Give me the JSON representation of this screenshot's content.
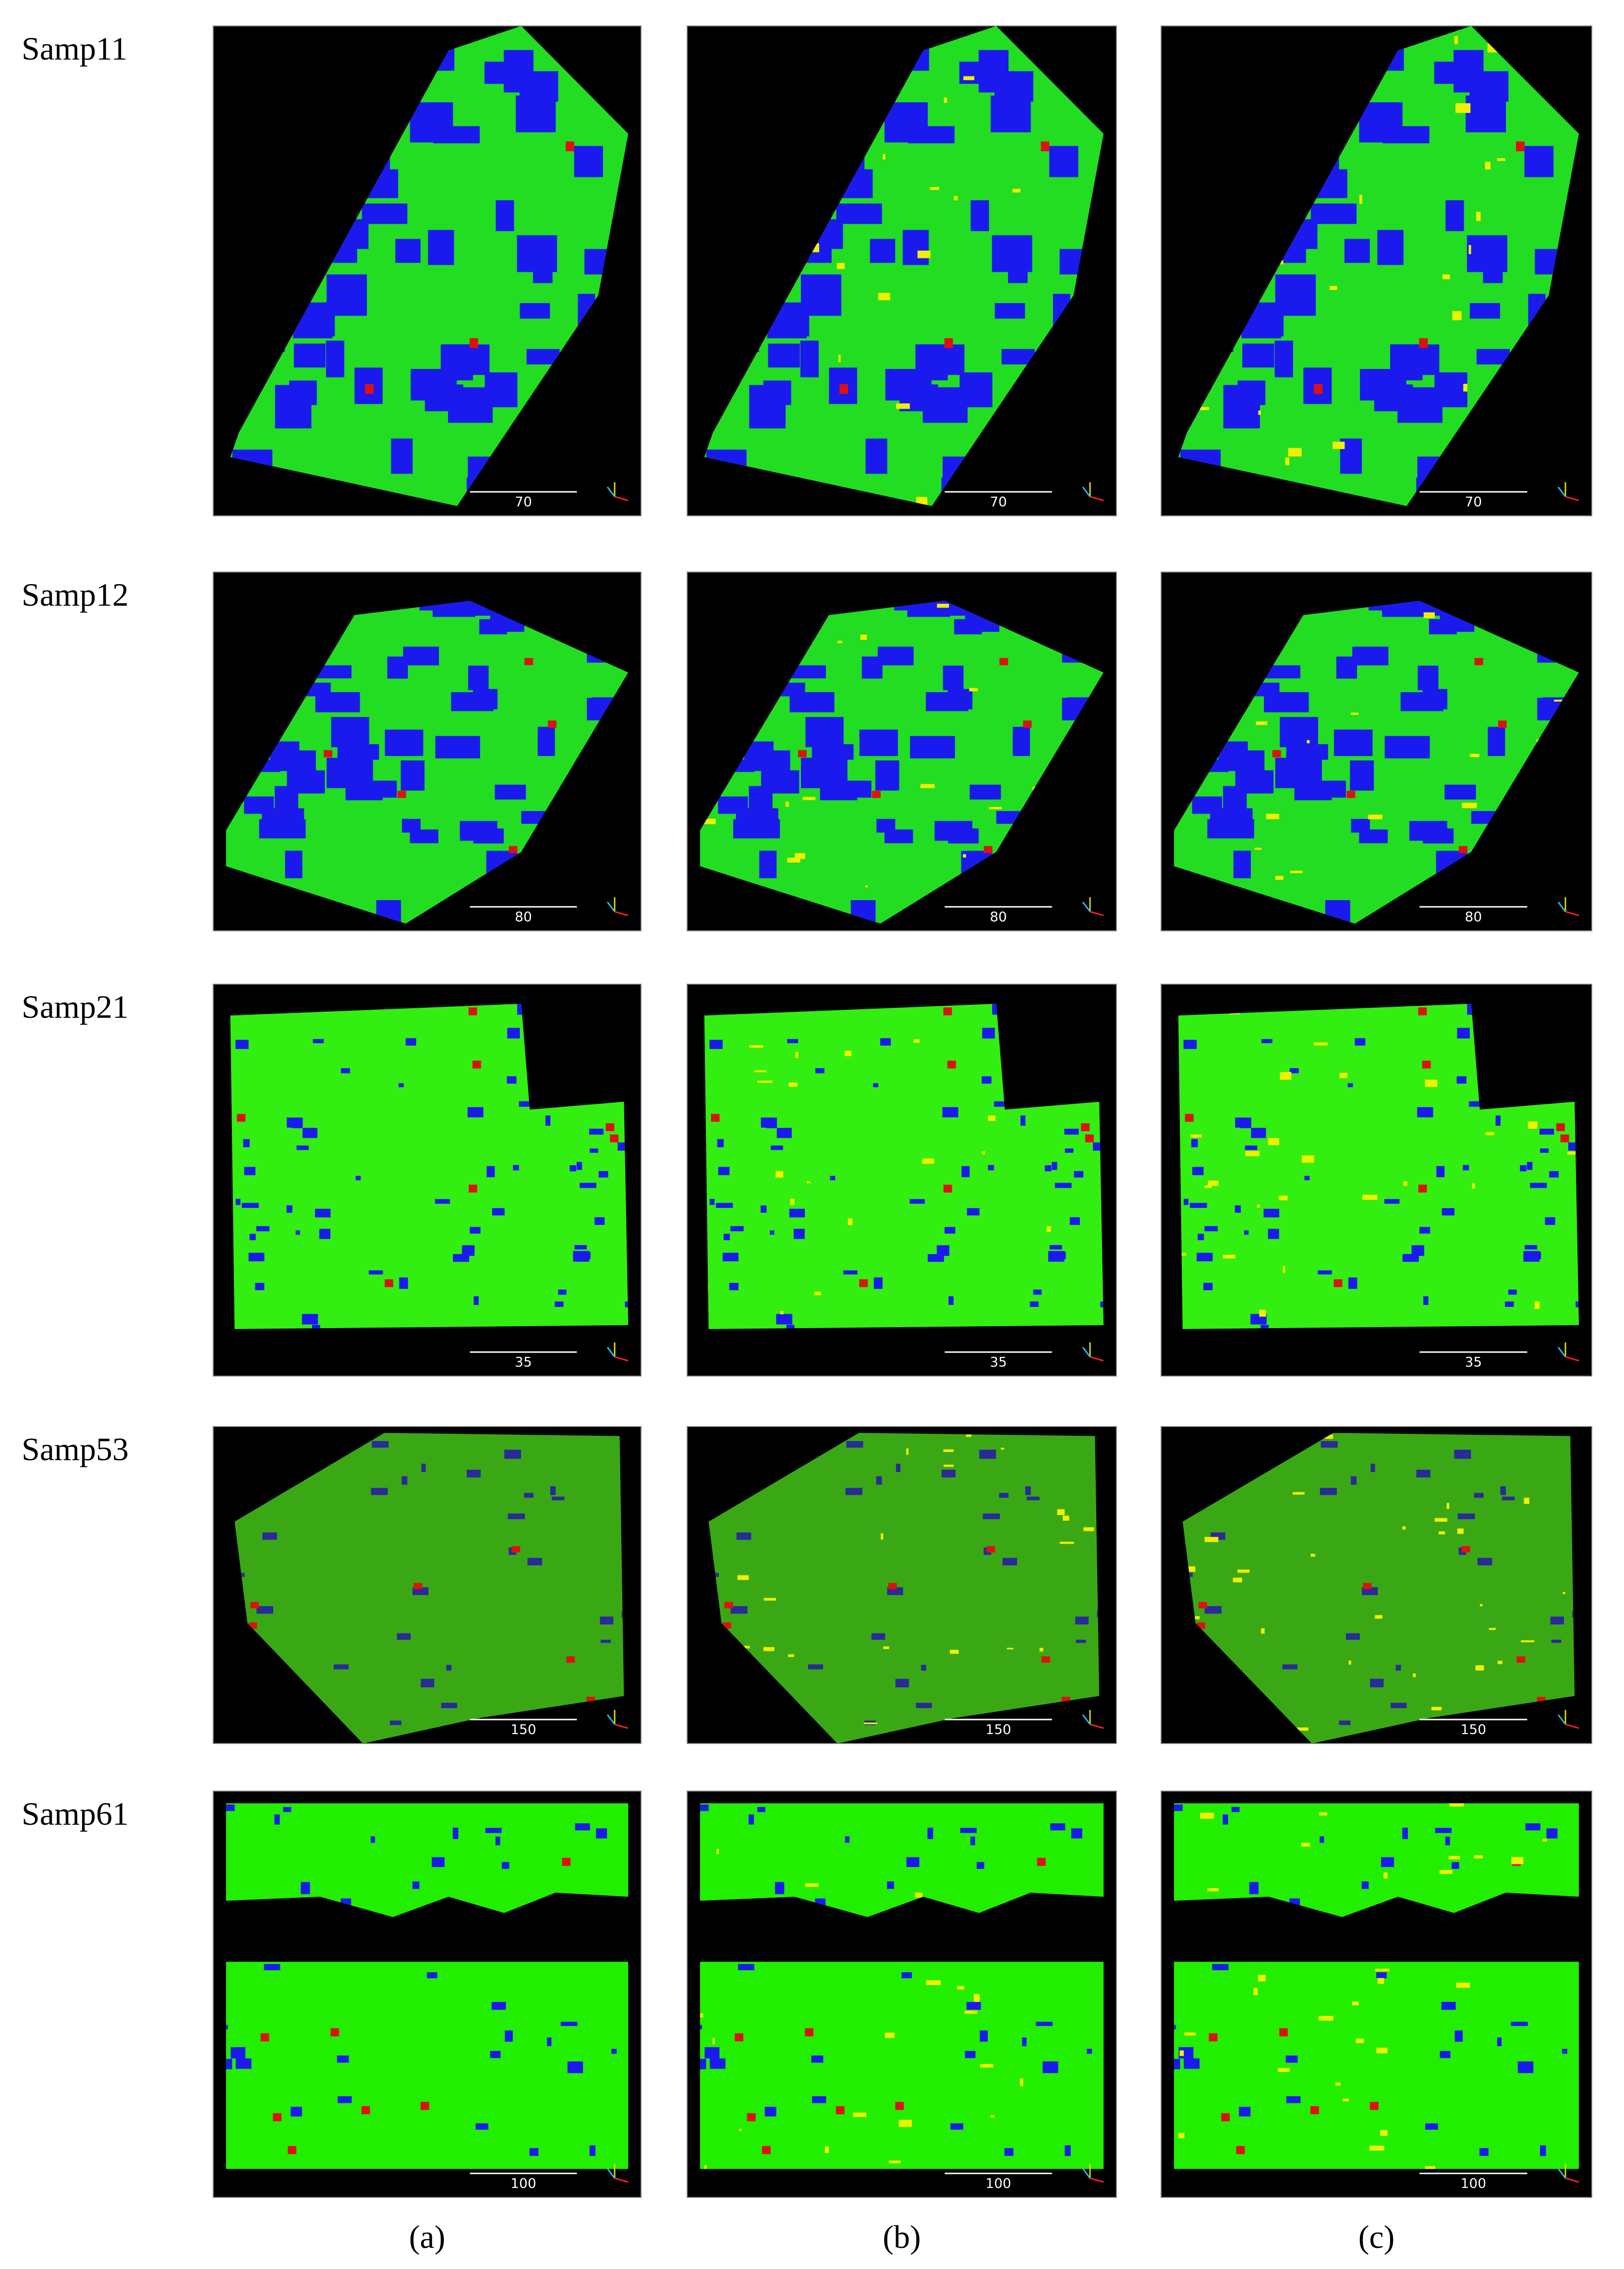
{
  "figure": {
    "rows": [
      {
        "label": "Samp11",
        "scale": "70"
      },
      {
        "label": "Samp12",
        "scale": "80"
      },
      {
        "label": "Samp21",
        "scale": "35"
      },
      {
        "label": "Samp53",
        "scale": "150"
      },
      {
        "label": "Samp61",
        "scale": "100"
      }
    ],
    "captions": [
      "(a)",
      "(b)",
      "(c)"
    ]
  }
}
